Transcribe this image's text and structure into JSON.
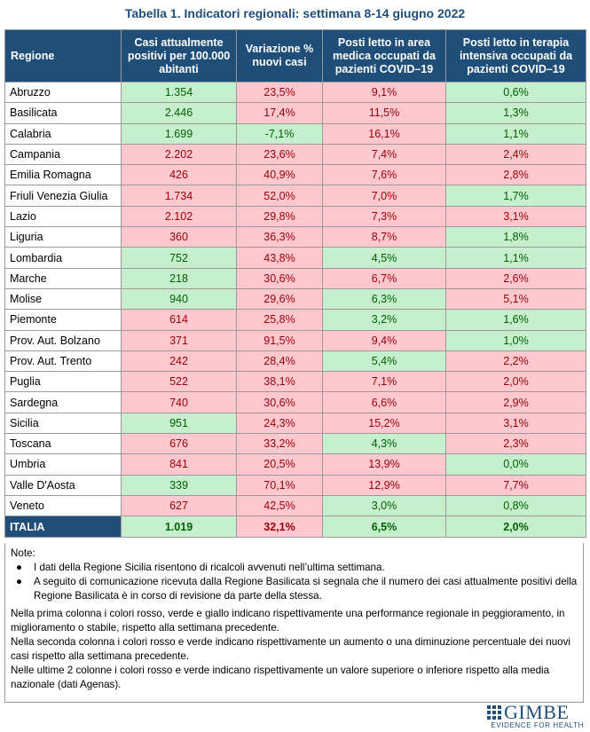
{
  "title": "Tabella 1. Indicatori regionali: settimana 8-14 giugno 2022",
  "headers": [
    "Regione",
    "Casi attualmente positivi per 100.000 abitanti",
    "Variazione % nuovi casi",
    "Posti letto in area medica occupati da pazienti COVID–19",
    "Posti letto in terapia intensiva occupati da pazienti COVID–19"
  ],
  "colors": {
    "green_bg": "#c6efce",
    "green_text": "#006100",
    "red_bg": "#ffc7ce",
    "red_text": "#9c0006",
    "header_bg": "#1f4e79"
  },
  "rows": [
    {
      "regione": "Abruzzo",
      "casi": "1.354",
      "casi_c": "g",
      "var": "23,5%",
      "var_c": "r",
      "medica": "9,1%",
      "medica_c": "r",
      "ti": "0,6%",
      "ti_c": "g"
    },
    {
      "regione": "Basilicata",
      "casi": "2.446",
      "casi_c": "g",
      "var": "17,4%",
      "var_c": "r",
      "medica": "11,5%",
      "medica_c": "r",
      "ti": "1,3%",
      "ti_c": "g"
    },
    {
      "regione": "Calabria",
      "casi": "1.699",
      "casi_c": "g",
      "var": "-7,1%",
      "var_c": "g",
      "medica": "16,1%",
      "medica_c": "r",
      "ti": "1,1%",
      "ti_c": "g"
    },
    {
      "regione": "Campania",
      "casi": "2.202",
      "casi_c": "r",
      "var": "23,6%",
      "var_c": "r",
      "medica": "7,4%",
      "medica_c": "r",
      "ti": "2,4%",
      "ti_c": "r"
    },
    {
      "regione": "Emilia Romagna",
      "casi": "426",
      "casi_c": "r",
      "var": "40,9%",
      "var_c": "r",
      "medica": "7,6%",
      "medica_c": "r",
      "ti": "2,8%",
      "ti_c": "r"
    },
    {
      "regione": "Friuli Venezia Giulia",
      "casi": "1.734",
      "casi_c": "r",
      "var": "52,0%",
      "var_c": "r",
      "medica": "7,0%",
      "medica_c": "r",
      "ti": "1,7%",
      "ti_c": "g"
    },
    {
      "regione": "Lazio",
      "casi": "2.102",
      "casi_c": "r",
      "var": "29,8%",
      "var_c": "r",
      "medica": "7,3%",
      "medica_c": "r",
      "ti": "3,1%",
      "ti_c": "r"
    },
    {
      "regione": "Liguria",
      "casi": "360",
      "casi_c": "r",
      "var": "36,3%",
      "var_c": "r",
      "medica": "8,7%",
      "medica_c": "r",
      "ti": "1,8%",
      "ti_c": "g"
    },
    {
      "regione": "Lombardia",
      "casi": "752",
      "casi_c": "g",
      "var": "43,8%",
      "var_c": "r",
      "medica": "4,5%",
      "medica_c": "g",
      "ti": "1,1%",
      "ti_c": "g"
    },
    {
      "regione": "Marche",
      "casi": "218",
      "casi_c": "g",
      "var": "30,6%",
      "var_c": "r",
      "medica": "6,7%",
      "medica_c": "r",
      "ti": "2,6%",
      "ti_c": "r"
    },
    {
      "regione": "Molise",
      "casi": "940",
      "casi_c": "g",
      "var": "29,6%",
      "var_c": "r",
      "medica": "6,3%",
      "medica_c": "g",
      "ti": "5,1%",
      "ti_c": "r"
    },
    {
      "regione": "Piemonte",
      "casi": "614",
      "casi_c": "r",
      "var": "25,8%",
      "var_c": "r",
      "medica": "3,2%",
      "medica_c": "g",
      "ti": "1,6%",
      "ti_c": "g"
    },
    {
      "regione": "Prov. Aut. Bolzano",
      "casi": "371",
      "casi_c": "r",
      "var": "91,5%",
      "var_c": "r",
      "medica": "9,4%",
      "medica_c": "r",
      "ti": "1,0%",
      "ti_c": "g"
    },
    {
      "regione": "Prov. Aut. Trento",
      "casi": "242",
      "casi_c": "r",
      "var": "28,4%",
      "var_c": "r",
      "medica": "5,4%",
      "medica_c": "g",
      "ti": "2,2%",
      "ti_c": "r"
    },
    {
      "regione": "Puglia",
      "casi": "522",
      "casi_c": "r",
      "var": "38,1%",
      "var_c": "r",
      "medica": "7,1%",
      "medica_c": "r",
      "ti": "2,0%",
      "ti_c": "r"
    },
    {
      "regione": "Sardegna",
      "casi": "740",
      "casi_c": "r",
      "var": "30,6%",
      "var_c": "r",
      "medica": "6,6%",
      "medica_c": "r",
      "ti": "2,9%",
      "ti_c": "r"
    },
    {
      "regione": "Sicilia",
      "casi": "951",
      "casi_c": "g",
      "var": "24,3%",
      "var_c": "r",
      "medica": "15,2%",
      "medica_c": "r",
      "ti": "3,1%",
      "ti_c": "r"
    },
    {
      "regione": "Toscana",
      "casi": "676",
      "casi_c": "r",
      "var": "33,2%",
      "var_c": "r",
      "medica": "4,3%",
      "medica_c": "g",
      "ti": "2,3%",
      "ti_c": "r"
    },
    {
      "regione": "Umbria",
      "casi": "841",
      "casi_c": "r",
      "var": "20,5%",
      "var_c": "r",
      "medica": "13,9%",
      "medica_c": "r",
      "ti": "0,0%",
      "ti_c": "g"
    },
    {
      "regione": "Valle D'Aosta",
      "casi": "339",
      "casi_c": "g",
      "var": "70,1%",
      "var_c": "r",
      "medica": "12,9%",
      "medica_c": "r",
      "ti": "7,7%",
      "ti_c": "r"
    },
    {
      "regione": "Veneto",
      "casi": "627",
      "casi_c": "r",
      "var": "42,5%",
      "var_c": "r",
      "medica": "3,0%",
      "medica_c": "g",
      "ti": "0,8%",
      "ti_c": "g"
    }
  ],
  "total": {
    "regione": "ITALIA",
    "casi": "1.019",
    "casi_c": "g",
    "var": "32,1%",
    "var_c": "r",
    "medica": "6,5%",
    "medica_c": "g",
    "ti": "2,0%",
    "ti_c": "g"
  },
  "notes": {
    "label": "Note:",
    "bullets": [
      "I dati della Regione Sicilia risentono di ricalcoli avvenuti nell’ultima settimana.",
      "A seguito di comunicazione ricevuta dalla Regione Basilicata si segnala che il numero dei casi attualmente positivi della Regione Basilicata è in corso di revisione da parte della stessa."
    ],
    "paragraphs": [
      "Nella prima colonna i colori rosso, verde e giallo indicano rispettivamente una performance regionale in peggioramento, in miglioramento o stabile, rispetto alla settimana precedente.",
      "Nella seconda colonna i colori rosso e verde indicano rispettivamente un aumento o una diminuzione percentuale dei nuovi casi rispetto alla settimana precedente.",
      "Nelle ultime 2 colonne i colori rosso e verde indicano rispettivamente un valore superiore o inferiore rispetto alla media nazionale (dati Agenas)."
    ]
  },
  "logo": {
    "name": "GIMBE",
    "tagline": "EVIDENCE FOR HEALTH"
  }
}
